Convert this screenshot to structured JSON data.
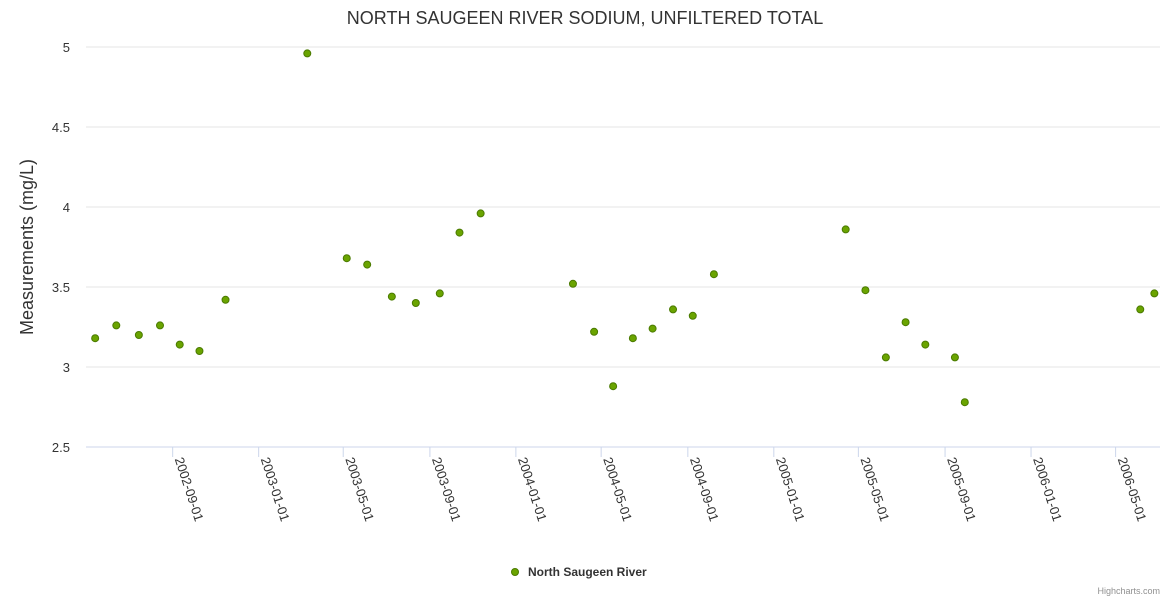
{
  "chart_data": {
    "type": "scatter",
    "title": "NORTH SAUGEEN RIVER SODIUM, UNFILTERED TOTAL",
    "xlabel": "",
    "ylabel": "Measurements (mg/L)",
    "ylim": [
      2.5,
      5
    ],
    "yticks": [
      "2.5",
      "3",
      "3.5",
      "4",
      "4.5",
      "5"
    ],
    "xlim": [
      "2002-05-01",
      "2006-07-03"
    ],
    "xticks": [
      "2002-09-01",
      "2003-01-01",
      "2003-05-01",
      "2003-09-01",
      "2004-01-01",
      "2004-05-01",
      "2004-09-01",
      "2005-01-01",
      "2005-05-01",
      "2005-09-01",
      "2006-01-01",
      "2006-05-01"
    ],
    "series": [
      {
        "name": "North Saugeen River",
        "color": "#6aa400",
        "points": [
          {
            "x": "2002-05-14",
            "y": 3.18
          },
          {
            "x": "2002-06-13",
            "y": 3.26
          },
          {
            "x": "2002-07-15",
            "y": 3.2
          },
          {
            "x": "2002-08-14",
            "y": 3.26
          },
          {
            "x": "2002-09-11",
            "y": 3.14
          },
          {
            "x": "2002-10-09",
            "y": 3.1
          },
          {
            "x": "2002-11-15",
            "y": 3.42
          },
          {
            "x": "2003-03-11",
            "y": 4.96
          },
          {
            "x": "2003-05-06",
            "y": 3.68
          },
          {
            "x": "2003-06-04",
            "y": 3.64
          },
          {
            "x": "2003-07-09",
            "y": 3.44
          },
          {
            "x": "2003-08-12",
            "y": 3.4
          },
          {
            "x": "2003-09-15",
            "y": 3.46
          },
          {
            "x": "2003-10-13",
            "y": 3.84
          },
          {
            "x": "2003-11-12",
            "y": 3.96
          },
          {
            "x": "2004-03-22",
            "y": 3.52
          },
          {
            "x": "2004-04-21",
            "y": 3.22
          },
          {
            "x": "2004-05-18",
            "y": 2.88
          },
          {
            "x": "2004-06-15",
            "y": 3.18
          },
          {
            "x": "2004-07-13",
            "y": 3.24
          },
          {
            "x": "2004-08-11",
            "y": 3.36
          },
          {
            "x": "2004-09-08",
            "y": 3.32
          },
          {
            "x": "2004-10-08",
            "y": 3.58
          },
          {
            "x": "2005-04-13",
            "y": 3.86
          },
          {
            "x": "2005-05-11",
            "y": 3.48
          },
          {
            "x": "2005-06-09",
            "y": 3.06
          },
          {
            "x": "2005-07-07",
            "y": 3.28
          },
          {
            "x": "2005-08-04",
            "y": 3.14
          },
          {
            "x": "2005-09-15",
            "y": 3.06
          },
          {
            "x": "2005-09-29",
            "y": 2.78
          },
          {
            "x": "2006-06-05",
            "y": 3.36
          },
          {
            "x": "2006-06-25",
            "y": 3.46
          }
        ]
      }
    ],
    "legend": {
      "placement": "bottom-center"
    },
    "grid": true
  },
  "credits": "Highcharts.com"
}
